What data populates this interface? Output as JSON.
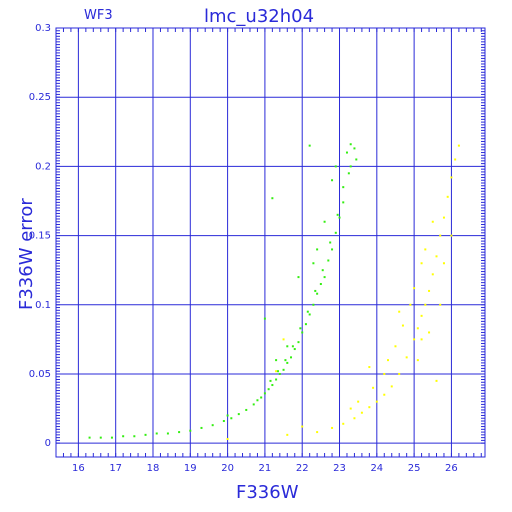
{
  "chart_data": {
    "type": "scatter",
    "title": "lmc_u32h04",
    "subtitle": "WF3",
    "xlabel": "F336W",
    "ylabel": "F336W error",
    "xlim": [
      15.4,
      26.9
    ],
    "ylim": [
      -0.01,
      0.3
    ],
    "xticks": [
      "16",
      "17",
      "18",
      "19",
      "20",
      "21",
      "22",
      "23",
      "24",
      "25",
      "26"
    ],
    "yticks": [
      "0",
      "0.05",
      "0.1",
      "0.15",
      "0.2",
      "0.25",
      "0.3"
    ],
    "grid": true,
    "series": [
      {
        "color": "#33ee11",
        "points": [
          [
            16.3,
            0.004
          ],
          [
            16.6,
            0.004
          ],
          [
            16.9,
            0.004
          ],
          [
            17.2,
            0.005
          ],
          [
            17.5,
            0.005
          ],
          [
            17.8,
            0.006
          ],
          [
            18.1,
            0.007
          ],
          [
            18.4,
            0.007
          ],
          [
            18.7,
            0.008
          ],
          [
            19.0,
            0.009
          ],
          [
            19.3,
            0.011
          ],
          [
            19.6,
            0.013
          ],
          [
            19.9,
            0.016
          ],
          [
            20.1,
            0.018
          ],
          [
            20.3,
            0.021
          ],
          [
            20.5,
            0.024
          ],
          [
            20.7,
            0.028
          ],
          [
            20.9,
            0.033
          ],
          [
            21.1,
            0.039
          ],
          [
            21.3,
            0.046
          ],
          [
            21.5,
            0.053
          ],
          [
            21.7,
            0.062
          ],
          [
            21.9,
            0.073
          ],
          [
            22.1,
            0.086
          ],
          [
            22.3,
            0.1
          ],
          [
            22.5,
            0.115
          ],
          [
            22.7,
            0.132
          ],
          [
            22.9,
            0.152
          ],
          [
            23.1,
            0.174
          ],
          [
            23.25,
            0.195
          ],
          [
            23.4,
            0.213
          ],
          [
            23.45,
            0.205
          ],
          [
            23.3,
            0.2
          ],
          [
            23.0,
            0.163
          ],
          [
            22.8,
            0.14
          ],
          [
            22.6,
            0.12
          ],
          [
            22.4,
            0.108
          ],
          [
            22.2,
            0.093
          ],
          [
            22.0,
            0.08
          ],
          [
            21.8,
            0.068
          ],
          [
            21.6,
            0.058
          ],
          [
            21.4,
            0.05
          ],
          [
            21.2,
            0.042
          ],
          [
            21.0,
            0.036
          ],
          [
            20.8,
            0.031
          ],
          [
            21.2,
            0.177
          ],
          [
            22.2,
            0.215
          ],
          [
            21.9,
            0.12
          ],
          [
            21.0,
            0.09
          ],
          [
            22.3,
            0.13
          ],
          [
            22.6,
            0.16
          ],
          [
            22.8,
            0.19
          ],
          [
            21.3,
            0.06
          ],
          [
            20.0,
            0.02
          ],
          [
            21.6,
            0.07
          ],
          [
            22.4,
            0.14
          ],
          [
            22.9,
            0.2
          ],
          [
            23.3,
            0.216
          ],
          [
            23.2,
            0.21
          ],
          [
            23.1,
            0.185
          ],
          [
            22.95,
            0.165
          ],
          [
            22.75,
            0.145
          ],
          [
            22.55,
            0.125
          ],
          [
            22.35,
            0.11
          ],
          [
            22.15,
            0.095
          ],
          [
            21.95,
            0.083
          ],
          [
            21.75,
            0.07
          ],
          [
            21.55,
            0.06
          ],
          [
            21.35,
            0.052
          ],
          [
            21.15,
            0.045
          ]
        ]
      },
      {
        "color": "#ffff00",
        "points": [
          [
            20.0,
            0.003
          ],
          [
            21.6,
            0.006
          ],
          [
            22.4,
            0.008
          ],
          [
            22.8,
            0.011
          ],
          [
            23.1,
            0.014
          ],
          [
            23.4,
            0.018
          ],
          [
            23.6,
            0.022
          ],
          [
            23.8,
            0.026
          ],
          [
            24.0,
            0.03
          ],
          [
            24.2,
            0.035
          ],
          [
            24.4,
            0.041
          ],
          [
            24.6,
            0.05
          ],
          [
            24.8,
            0.062
          ],
          [
            25.0,
            0.075
          ],
          [
            25.1,
            0.083
          ],
          [
            25.2,
            0.092
          ],
          [
            25.3,
            0.1
          ],
          [
            25.4,
            0.11
          ],
          [
            25.5,
            0.122
          ],
          [
            25.6,
            0.135
          ],
          [
            25.7,
            0.15
          ],
          [
            25.8,
            0.163
          ],
          [
            25.9,
            0.178
          ],
          [
            26.0,
            0.192
          ],
          [
            26.1,
            0.205
          ],
          [
            26.2,
            0.215
          ],
          [
            25.5,
            0.16
          ],
          [
            25.2,
            0.13
          ],
          [
            24.9,
            0.1
          ],
          [
            24.5,
            0.07
          ],
          [
            24.2,
            0.05
          ],
          [
            23.9,
            0.04
          ],
          [
            23.5,
            0.03
          ],
          [
            23.3,
            0.025
          ],
          [
            25.1,
            0.06
          ],
          [
            25.4,
            0.08
          ],
          [
            25.7,
            0.1
          ],
          [
            25.0,
            0.112
          ],
          [
            25.2,
            0.075
          ],
          [
            24.7,
            0.085
          ],
          [
            24.3,
            0.06
          ],
          [
            25.6,
            0.045
          ],
          [
            26.0,
            0.15
          ],
          [
            25.8,
            0.13
          ],
          [
            24.6,
            0.095
          ],
          [
            22.0,
            0.012
          ],
          [
            21.3,
            0.052
          ],
          [
            21.5,
            0.075
          ],
          [
            23.8,
            0.055
          ],
          [
            25.3,
            0.14
          ]
        ]
      }
    ]
  }
}
